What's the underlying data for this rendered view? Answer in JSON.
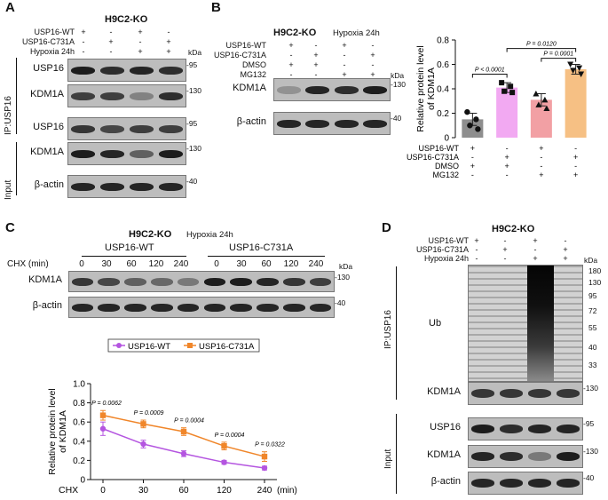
{
  "panelA": {
    "letter": "A",
    "title": "H9C2-KO",
    "rows": [
      "USP16-WT",
      "USP16-C731A",
      "Hypoxia 24h"
    ],
    "signs": [
      [
        "+",
        "-",
        "+",
        "-"
      ],
      [
        "-",
        "+",
        "-",
        "+"
      ],
      [
        "-",
        "-",
        "+",
        "+"
      ]
    ],
    "kda": "kDa",
    "ip_label": "IP:USP16",
    "input_label": "Input",
    "blots": [
      {
        "protein": "USP16",
        "marker": "95"
      },
      {
        "protein": "KDM1A",
        "marker": "130"
      },
      {
        "protein": "USP16",
        "marker": "95"
      },
      {
        "protein": "KDM1A",
        "marker": "130"
      },
      {
        "protein": "β-actin",
        "marker": "40"
      }
    ]
  },
  "panelB": {
    "letter": "B",
    "title": "H9C2-KO",
    "condition": "Hypoxia 24h",
    "rows": [
      "USP16-WT",
      "USP16-C731A",
      "DMSO",
      "MG132"
    ],
    "signs": [
      [
        "+",
        "-",
        "+",
        "-"
      ],
      [
        "-",
        "+",
        "-",
        "+"
      ],
      [
        "+",
        "+",
        "-",
        "-"
      ],
      [
        "-",
        "-",
        "+",
        "+"
      ]
    ],
    "kda": "kDa",
    "blots": [
      {
        "protein": "KDM1A",
        "marker": "130"
      },
      {
        "protein": "β-actin",
        "marker": "40"
      }
    ]
  },
  "panelC": {
    "letter": "C",
    "title": "H9C2-KO",
    "condition": "Hypoxia 24h",
    "group1": "USP16-WT",
    "group2": "USP16-C731A",
    "chx_label": "CHX (min)",
    "times": [
      "0",
      "30",
      "60",
      "120",
      "240",
      "0",
      "30",
      "60",
      "120",
      "240"
    ],
    "kda": "kDa",
    "blots": [
      {
        "protein": "KDM1A",
        "marker": "130"
      },
      {
        "protein": "β-actin",
        "marker": "40"
      }
    ]
  },
  "panelD": {
    "letter": "D",
    "title": "H9C2-KO",
    "rows": [
      "USP16-WT",
      "USP16-C731A",
      "Hypoxia 24h"
    ],
    "signs": [
      [
        "+",
        "-",
        "+",
        "-"
      ],
      [
        "-",
        "+",
        "-",
        "+"
      ],
      [
        "-",
        "-",
        "+",
        "+"
      ]
    ],
    "kda": "kDa",
    "ip_label": "IP:USP16",
    "input_label": "Input",
    "ub_label": "Ub",
    "ub_markers": [
      "180",
      "130",
      "95",
      "72",
      "55",
      "40",
      "33"
    ],
    "blots": [
      {
        "protein": "KDM1A",
        "marker": "130"
      },
      {
        "protein": "USP16",
        "marker": "95"
      },
      {
        "protein": "KDM1A",
        "marker": "130"
      },
      {
        "protein": "β-actin",
        "marker": "40"
      }
    ]
  },
  "chart_data": [
    {
      "type": "bar",
      "title": "",
      "ylabel": "Relative protein level of KDM1A",
      "ylim": [
        0,
        0.8
      ],
      "yticks": [
        "0",
        "0.2",
        "0.4",
        "0.6",
        "0.8"
      ],
      "row_labels": [
        "USP16-WT",
        "USP16-C731A",
        "DMSO",
        "MG132"
      ],
      "row_signs": [
        [
          "+",
          "-",
          "+",
          "-"
        ],
        [
          "-",
          "+",
          "-",
          "+"
        ],
        [
          "+",
          "+",
          "-",
          "-"
        ],
        [
          "-",
          "-",
          "+",
          "+"
        ]
      ],
      "values": [
        0.15,
        0.41,
        0.31,
        0.56
      ],
      "errors": [
        0.05,
        0.04,
        0.05,
        0.04
      ],
      "colors": [
        "#8e8e8e",
        "#f2a9f2",
        "#f2a0a4",
        "#f6c084"
      ],
      "points": [
        [
          0.21,
          0.15,
          0.1,
          0.07
        ],
        [
          0.45,
          0.42,
          0.38,
          0.37
        ],
        [
          0.36,
          0.31,
          0.27,
          0.24
        ],
        [
          0.6,
          0.57,
          0.55,
          0.52
        ]
      ],
      "comparisons": [
        {
          "from": 0,
          "to": 1,
          "label": "P < 0.0001",
          "y": 0.52
        },
        {
          "from": 1,
          "to": 3,
          "label": "P = 0.0120",
          "y": 0.73
        },
        {
          "from": 2,
          "to": 3,
          "label": "P = 0.0001",
          "y": 0.65
        }
      ]
    },
    {
      "type": "line",
      "xlabel": "CHX",
      "xunit": "(min)",
      "ylabel": "Relative protein level of KDM1A",
      "ylim": [
        0,
        1.0
      ],
      "yticks": [
        "0",
        "0.2",
        "0.4",
        "0.6",
        "0.8",
        "1.0"
      ],
      "x": [
        "0",
        "30",
        "60",
        "120",
        "240"
      ],
      "series": [
        {
          "name": "USP16-WT",
          "values": [
            0.53,
            0.37,
            0.27,
            0.18,
            0.12
          ],
          "errors": [
            0.07,
            0.04,
            0.03,
            0.02,
            0.02
          ],
          "color": "#b455e0"
        },
        {
          "name": "USP16-C731A",
          "values": [
            0.67,
            0.58,
            0.5,
            0.35,
            0.24
          ],
          "errors": [
            0.05,
            0.04,
            0.04,
            0.04,
            0.05
          ],
          "color": "#f0862a"
        }
      ],
      "pvalues": [
        "P = 0.0062",
        "P = 0.0009",
        "P = 0.0004",
        "P = 0.0004",
        "P = 0.0322"
      ],
      "legend": "top"
    }
  ]
}
